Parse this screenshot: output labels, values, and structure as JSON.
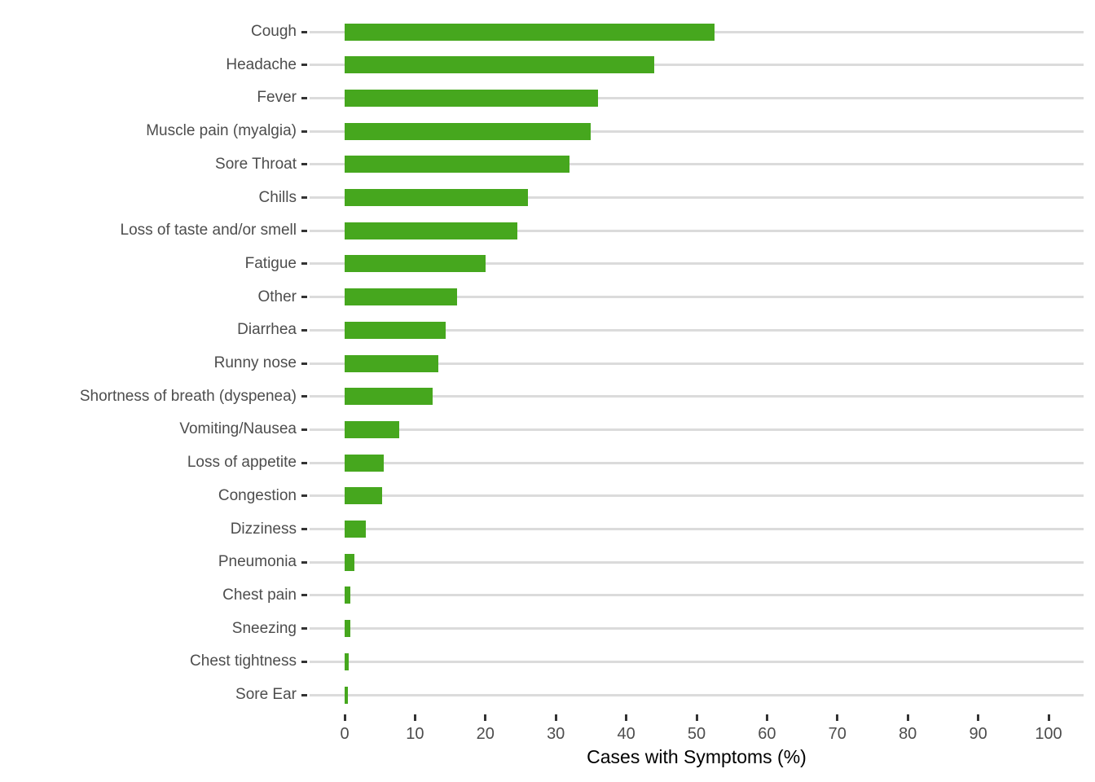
{
  "figure": {
    "background": "#FFFFFF"
  },
  "chart_data": {
    "type": "bar",
    "orientation": "horizontal",
    "title": "",
    "xlabel": "Cases with Symptoms (%)",
    "ylabel": "",
    "xlim": [
      0,
      100
    ],
    "x_ticks": [
      0,
      10,
      20,
      30,
      40,
      50,
      60,
      70,
      80,
      90,
      100
    ],
    "legend": "none",
    "grid": "horizontal-major-only",
    "categories": [
      "Cough",
      "Headache",
      "Fever",
      "Muscle pain (myalgia)",
      "Sore Throat",
      "Chills",
      "Loss of taste and/or smell",
      "Fatigue",
      "Other",
      "Diarrhea",
      "Runny nose",
      "Shortness of breath (dyspenea)",
      "Vomiting/Nausea",
      "Loss of appetite",
      "Congestion",
      "Dizziness",
      "Pneumonia",
      "Chest pain",
      "Sneezing",
      "Chest tightness",
      "Sore Ear"
    ],
    "values": [
      52.5,
      44,
      36,
      35,
      32,
      26,
      24.5,
      20,
      16,
      14.3,
      13.3,
      12.5,
      7.8,
      5.6,
      5.3,
      3,
      1.4,
      0.8,
      0.8,
      0.6,
      0.5
    ],
    "bar_color": "#46A71E",
    "gridline_color": "#DBDBDB",
    "tick_color": "#333333",
    "axis_text_color": "#4D4D4D",
    "axis_title_color": "#000000"
  }
}
